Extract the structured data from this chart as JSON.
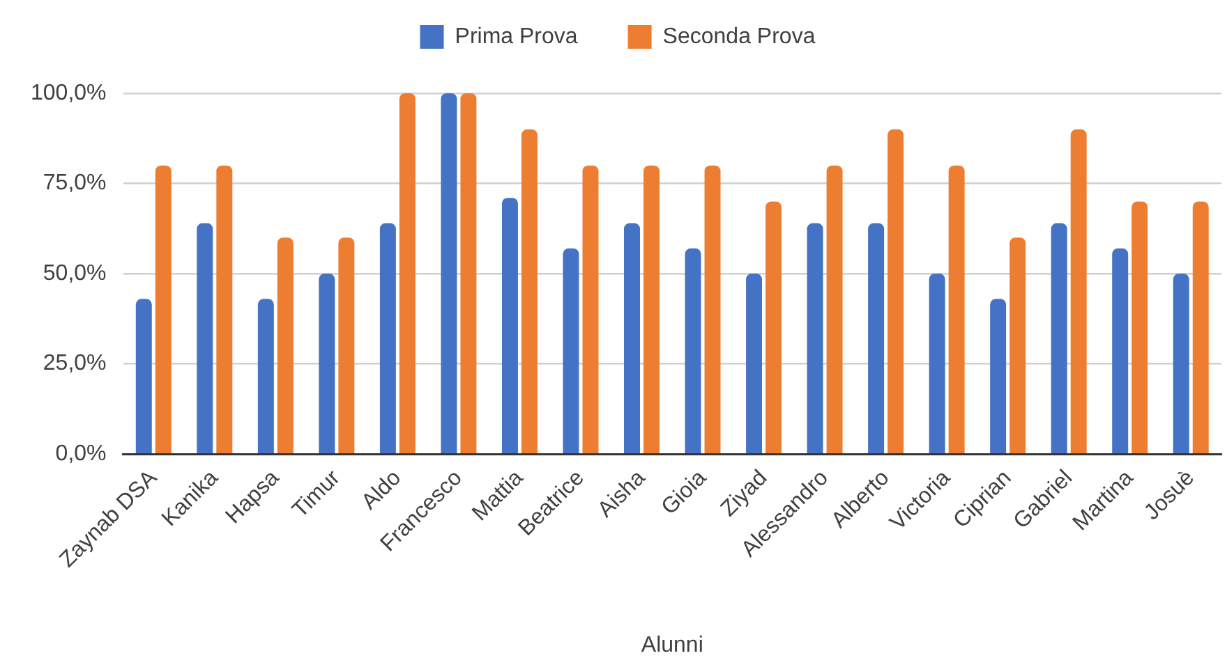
{
  "chart_data": {
    "type": "bar",
    "categories": [
      "Zaynab DSA",
      "Kanika",
      "Hapsa",
      "Timur",
      "Aldo",
      "Francesco",
      "Mattia",
      "Beatrice",
      "Aisha",
      "Gioia",
      "Ziyad",
      "Alessandro",
      "Alberto",
      "Victoria",
      "Ciprian",
      "Gabriel",
      "Martina",
      "Josuè"
    ],
    "series": [
      {
        "name": "Prima Prova",
        "color": "#4472c4",
        "values": [
          43,
          64,
          43,
          50,
          64,
          100,
          71,
          57,
          64,
          57,
          50,
          64,
          64,
          50,
          43,
          64,
          57,
          50
        ]
      },
      {
        "name": "Seconda Prova",
        "color": "#ed7d31",
        "values": [
          80,
          80,
          60,
          60,
          100,
          100,
          90,
          80,
          80,
          80,
          70,
          80,
          90,
          80,
          60,
          90,
          70,
          70
        ]
      }
    ],
    "xlabel": "Alunni",
    "ylim": [
      0,
      100
    ],
    "yticks": [
      {
        "value": 0,
        "label": "0,0%"
      },
      {
        "value": 25,
        "label": "25,0%"
      },
      {
        "value": 50,
        "label": "50,0%"
      },
      {
        "value": 75,
        "label": "75,0%"
      },
      {
        "value": 100,
        "label": "100,0%"
      }
    ],
    "grid": "y",
    "legend": "top"
  }
}
